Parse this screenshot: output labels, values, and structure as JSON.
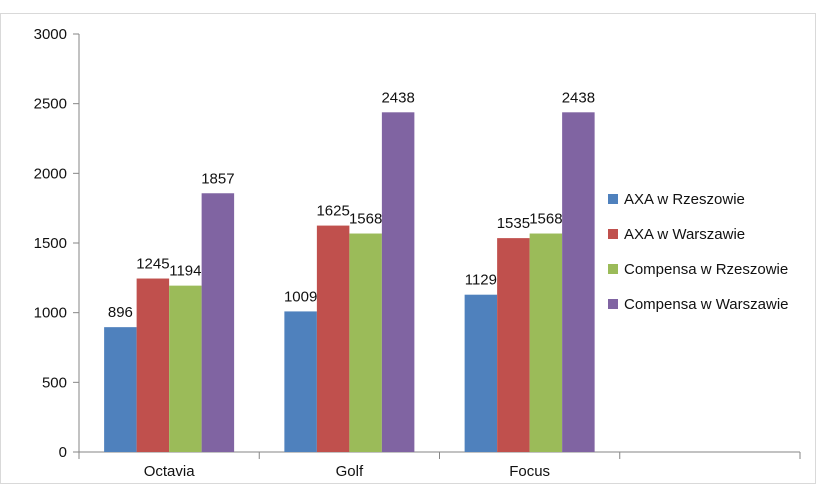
{
  "chart_data": {
    "type": "bar",
    "categories": [
      "Octavia",
      "Golf",
      "Focus",
      ""
    ],
    "series": [
      {
        "name": "AXA w Rzeszowie",
        "color": "#4F81BD",
        "values": [
          896,
          1009,
          1129,
          null
        ]
      },
      {
        "name": "AXA w Warszawie",
        "color": "#C0504D",
        "values": [
          1245,
          1625,
          1535,
          null
        ]
      },
      {
        "name": "Compensa w Rzeszowie",
        "color": "#9BBB59",
        "values": [
          1194,
          1568,
          1568,
          null
        ]
      },
      {
        "name": "Compensa w Warszawie",
        "color": "#8064A2",
        "values": [
          1857,
          2438,
          2438,
          null
        ]
      }
    ],
    "ylim": [
      0,
      3000
    ],
    "yticks": [
      0,
      500,
      1000,
      1500,
      2000,
      2500,
      3000
    ],
    "data_labels": true,
    "legend_position": "right",
    "grid": false
  }
}
